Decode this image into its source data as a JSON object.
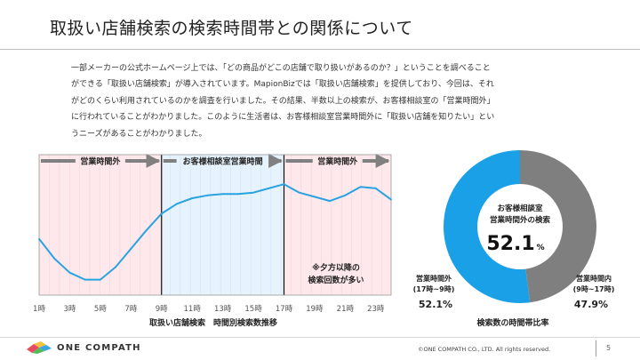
{
  "page": {
    "title": "取扱い店舗検索の検索時間帯との関係について",
    "paragraph_lines": [
      "一部メーカーの公式ホームページ上では、「どの商品がどこの店舗で取り扱いがあるのか？」ということを調べること",
      "ができる「取扱い店舗検索」が導入されています。MapionBizでは「取扱い店舗検索」を提供しており、今回は、それ",
      "がどのくらい利用されているのかを調査を行いました。その結果、半数以上の検索が、お客様相談室の「営業時間外」",
      "に行われていることがわかりました。このように生活者は、お客様相談室営業時間外に「取扱い店舗を知りたい」とい",
      "うニーズがあることがわかりました。"
    ],
    "page_number": "5"
  },
  "footer": {
    "logo_text": "ONE COMPATH",
    "copyright": "©ONE COMPATH CO., LTD. All rights reserved."
  },
  "colors": {
    "off_hours_fill": "#fde8ec",
    "office_hours_fill": "#e6f2fc",
    "line": "#29a3e0",
    "donut_blue": "#1aa0e6",
    "donut_gray": "#7f7f7f",
    "arrow_gray": "#808080"
  },
  "chart_data": [
    {
      "type": "line",
      "title": "取扱い店舗検索　時間別検索数推移",
      "x_tick_labels": [
        "1時",
        "3時",
        "5時",
        "7時",
        "9時",
        "11時",
        "13時",
        "15時",
        "17時",
        "19時",
        "21時",
        "23時"
      ],
      "x": [
        1,
        2,
        3,
        4,
        5,
        6,
        7,
        8,
        9,
        10,
        11,
        12,
        13,
        14,
        15,
        16,
        17,
        18,
        19,
        20,
        21,
        22,
        23,
        24
      ],
      "y_relative": [
        0.4,
        0.26,
        0.16,
        0.11,
        0.11,
        0.2,
        0.33,
        0.46,
        0.58,
        0.65,
        0.69,
        0.71,
        0.72,
        0.72,
        0.73,
        0.76,
        0.79,
        0.73,
        0.7,
        0.67,
        0.71,
        0.77,
        0.76,
        0.68
      ],
      "regions": [
        {
          "label": "営業時間外",
          "from": 1,
          "to": 9
        },
        {
          "label": "お客様相談室営業時間",
          "from": 9,
          "to": 17
        },
        {
          "label": "営業時間外",
          "from": 17,
          "to": 24
        }
      ],
      "annotation": [
        "※夕方以降の",
        "検索回数が多い"
      ],
      "grid": "vertical",
      "legend": "none"
    },
    {
      "type": "pie",
      "title": "検索数の時間帯比率",
      "center_label": [
        "お客様相談室",
        "営業時間外の検索"
      ],
      "center_value": "52.1",
      "center_unit": "%",
      "slices": [
        {
          "label": [
            "営業時間外",
            "(17時~9時)"
          ],
          "value": 52.1,
          "display": "52.1%"
        },
        {
          "label": [
            "営業時間内",
            "(9時~17時)"
          ],
          "value": 47.9,
          "display": "47.9%"
        }
      ]
    }
  ]
}
